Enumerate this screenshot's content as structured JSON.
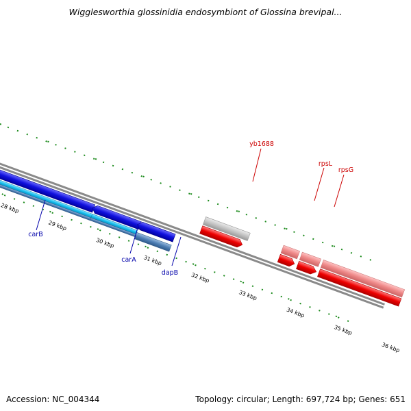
{
  "title": "Wigglesworthia glossinidia endosymbiont of Glossina brevipal...",
  "footer": {
    "accession": "Accession: NC_004344",
    "stats": "Topology: circular; Length: 697,724 bp; Genes: 651"
  },
  "colors": {
    "backbone": "#8a8a8a",
    "tick": "#1a8a1a",
    "forward_label": "#cc0000",
    "reverse_label": "#0000aa",
    "blue": "#1010dd",
    "cyan": "#18c0f0",
    "steel": "#4f7fb5",
    "red": "#ee0000",
    "pink": "#ee8888",
    "grey": "#c4c4c4"
  },
  "scale_labels": [
    "28 kbp",
    "29 kbp",
    "30 kbp",
    "31 kbp",
    "32 kbp",
    "33 kbp",
    "34 kbp",
    "35 kbp",
    "36 kbp"
  ],
  "genes": {
    "forward": [
      {
        "name": "yb1688",
        "icon": "arrow-right"
      },
      {
        "name": "rpsL",
        "icon": "arrow-right"
      },
      {
        "name": "rpsG",
        "icon": "arrow-right"
      }
    ],
    "reverse": [
      {
        "name": "carB",
        "icon": "arrow-left"
      },
      {
        "name": "carA",
        "icon": "arrow-left"
      },
      {
        "name": "dapB",
        "icon": "arrow-left"
      }
    ]
  }
}
